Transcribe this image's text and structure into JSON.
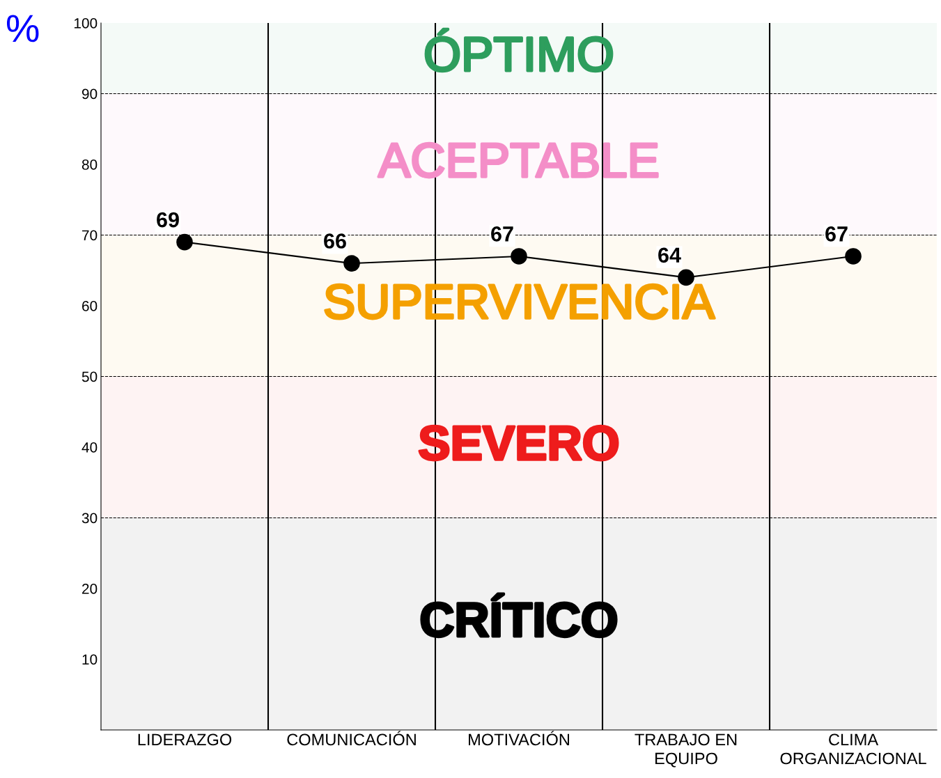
{
  "chart_data": {
    "type": "line",
    "ylabel": "%",
    "categories": [
      "LIDERAZGO",
      "COMUNICACIÓN",
      "MOTIVACIÓN",
      "TRABAJO EN\nEQUIPO",
      "CLIMA\nORGANIZACIONAL"
    ],
    "series": [
      {
        "color": "#000000",
        "values": [
          69,
          66,
          67,
          64,
          67
        ]
      }
    ],
    "data_labels": true,
    "marker": "circle",
    "line_style": "solid",
    "grid": "x",
    "ylim": [
      0,
      100
    ],
    "yticks": [
      10,
      20,
      30,
      40,
      50,
      60,
      70,
      80,
      90,
      100
    ],
    "ref_lines": [
      {
        "axis": "y",
        "value": 90,
        "line_style": "dashed",
        "color": "#000000"
      },
      {
        "axis": "y",
        "value": 70,
        "line_style": "dashed",
        "color": "#000000"
      },
      {
        "axis": "y",
        "value": 50,
        "line_style": "dashed",
        "color": "#000000"
      },
      {
        "axis": "y",
        "value": 30,
        "line_style": "dashed",
        "color": "#000000"
      }
    ],
    "bands": [
      {
        "axis": "y",
        "from": 90,
        "to": 100,
        "label": "ÓPTIMO",
        "color": "#2e9e5e"
      },
      {
        "axis": "y",
        "from": 70,
        "to": 90,
        "label": "ACEPTABLE",
        "color": "#f48fc8"
      },
      {
        "axis": "y",
        "from": 50,
        "to": 70,
        "label": "SUPERVIVENCIA",
        "color": "#f5a000"
      },
      {
        "axis": "y",
        "from": 30,
        "to": 50,
        "label": "SEVERO",
        "color": "#ee1c1c"
      },
      {
        "axis": "y",
        "from": 0,
        "to": 30,
        "label": "CRÍTICO",
        "color": "#000000"
      }
    ]
  }
}
